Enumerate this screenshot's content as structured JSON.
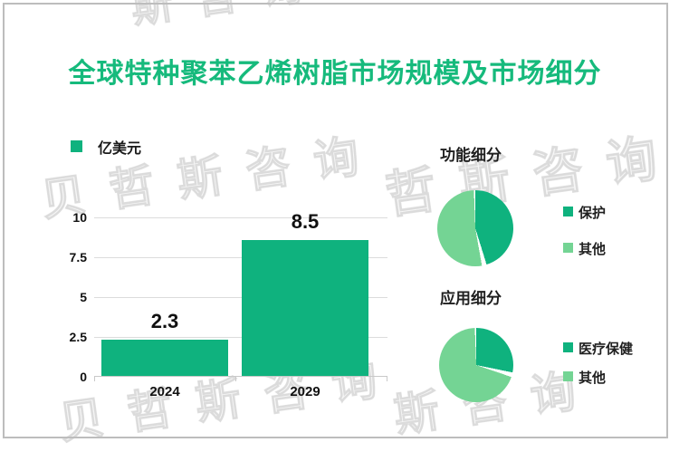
{
  "title": "全球特种聚苯乙烯树脂市场规模及市场细分",
  "colors": {
    "accent_green": "#16ba7c",
    "bar_green": "#0fb27e",
    "pie_light_green": "#74d494",
    "grid_gray": "#dcdcdc",
    "frame_gray": "#bdbdbd",
    "text_dark": "#1a1a1a"
  },
  "bar_chart": {
    "unit_legend": "亿美元",
    "ytick_labels": [
      "10",
      "7.5",
      "5",
      "2.5",
      "0"
    ]
  },
  "pie_section_1": {
    "title": "功能细分",
    "legend": [
      {
        "label": "保护",
        "swatch": "dark-green"
      },
      {
        "label": "其他",
        "swatch": "light-green"
      }
    ]
  },
  "pie_section_2": {
    "title": "应用细分",
    "legend": [
      {
        "label": "医疗保健",
        "swatch": "dark-green"
      },
      {
        "label": "其他",
        "swatch": "light-green"
      }
    ]
  },
  "watermark": {
    "instances": [
      {
        "text": "斯咨询"
      },
      {
        "text": "贝哲斯咨询"
      },
      {
        "text": "哲斯咨询"
      },
      {
        "text": "贝哲斯咨询"
      },
      {
        "text": "斯咨询"
      }
    ]
  },
  "chart_data": [
    {
      "type": "bar",
      "title": "全球特种聚苯乙烯树脂市场规模",
      "unit": "亿美元",
      "categories": [
        "2024",
        "2029"
      ],
      "values": [
        2.3,
        8.5
      ],
      "ylim": [
        0,
        10
      ],
      "yticks": [
        0,
        2.5,
        5,
        7.5,
        10
      ],
      "bar_color": "#0fb27e",
      "grid": true,
      "value_labels": [
        "2.3",
        "8.5"
      ]
    },
    {
      "type": "pie",
      "title": "功能细分",
      "labels": [
        "保护",
        "其他"
      ],
      "values": [
        46,
        54
      ],
      "colors": [
        "#0fb27e",
        "#74d494"
      ],
      "legend_position": "right"
    },
    {
      "type": "pie",
      "title": "应用细分",
      "labels": [
        "医疗保健",
        "其他"
      ],
      "values": [
        29,
        71
      ],
      "colors": [
        "#0fb27e",
        "#74d494"
      ],
      "legend_position": "right"
    }
  ]
}
